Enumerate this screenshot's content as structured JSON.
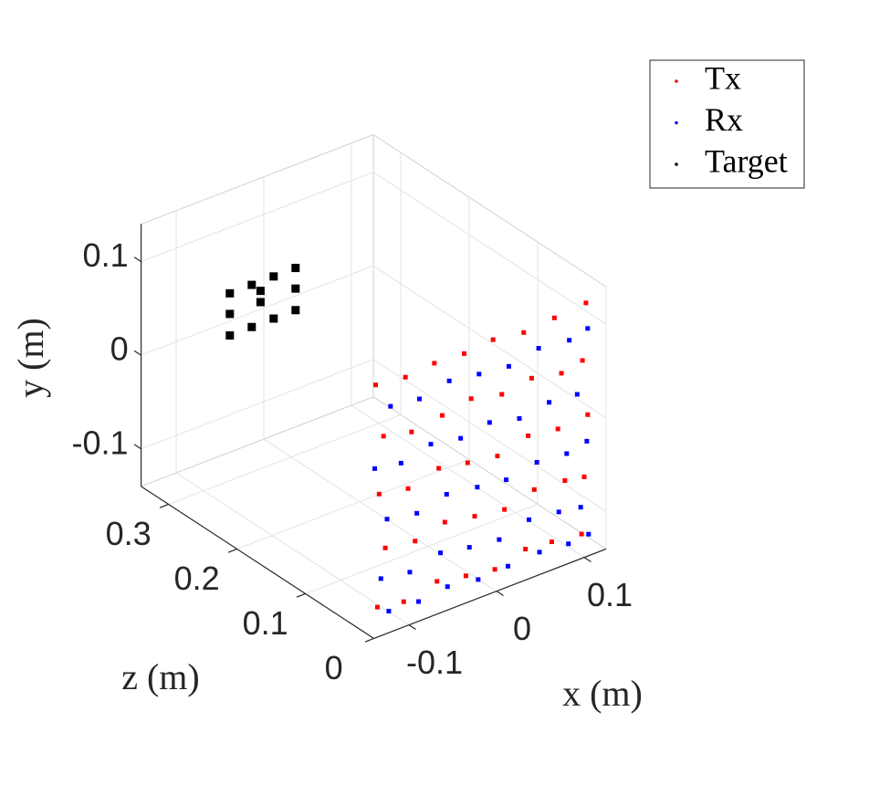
{
  "chart_data": {
    "type": "scatter3d",
    "xlabel": "x (m)",
    "ylabel": "y (m)",
    "zlabel": "z (m)",
    "xlim": [
      -0.14,
      0.125
    ],
    "ylim": [
      -0.14,
      0.14
    ],
    "zlim": [
      0,
      0.34
    ],
    "xticks": [
      -0.1,
      0,
      0.1
    ],
    "yticks": [
      -0.1,
      0,
      0.1
    ],
    "zticks": [
      0,
      0.1,
      0.2,
      0.3
    ],
    "grid": true,
    "series": [
      {
        "name": "Tx",
        "color": "#ff0000",
        "x": [
          -0.138,
          -0.104,
          -0.071,
          -0.037,
          -0.004,
          0.031,
          0.066,
          0.102,
          -0.129,
          -0.097,
          -0.062,
          -0.029,
          0.006,
          0.04,
          0.074,
          0.098,
          -0.134,
          -0.101,
          -0.066,
          -0.033,
          0.001,
          0.036,
          0.07,
          0.104,
          -0.127,
          -0.093,
          -0.059,
          -0.025,
          0.009,
          0.043,
          0.078,
          0.1,
          -0.136,
          -0.106,
          -0.068,
          -0.035,
          -0.002,
          0.033,
          0.063,
          0.097
        ],
        "y": [
          0.13,
          0.126,
          0.129,
          0.127,
          0.13,
          0.125,
          0.128,
          0.131,
          0.072,
          0.065,
          0.07,
          0.076,
          0.068,
          0.073,
          0.066,
          0.071,
          0.012,
          0.006,
          0.015,
          0.009,
          0.004,
          0.013,
          0.008,
          0.011,
          -0.048,
          -0.053,
          -0.045,
          -0.051,
          -0.056,
          -0.047,
          -0.05,
          -0.054,
          -0.108,
          -0.113,
          -0.105,
          -0.111,
          -0.116,
          -0.107,
          -0.11,
          -0.114
        ],
        "z": [
          0,
          0,
          0,
          0,
          0,
          0,
          0,
          0,
          0,
          0,
          0,
          0,
          0,
          0,
          0,
          0,
          0,
          0,
          0,
          0,
          0,
          0,
          0,
          0,
          0,
          0,
          0,
          0,
          0,
          0,
          0,
          0,
          0,
          0,
          0,
          0,
          0,
          0,
          0,
          0
        ]
      },
      {
        "name": "Rx",
        "color": "#0000ff",
        "x": [
          -0.121,
          -0.088,
          -0.054,
          -0.02,
          0.014,
          0.048,
          0.083,
          0.104,
          -0.139,
          -0.109,
          -0.075,
          -0.041,
          -0.008,
          0.026,
          0.06,
          0.092,
          -0.125,
          -0.091,
          -0.057,
          -0.022,
          0.011,
          0.046,
          0.08,
          0.103,
          -0.132,
          -0.099,
          -0.064,
          -0.031,
          0.003,
          0.037,
          0.071,
          0.096,
          -0.123,
          -0.089,
          -0.056,
          -0.021,
          0.013,
          0.049,
          0.082,
          0.105
        ],
        "y": [
          0.101,
          0.097,
          0.104,
          0.099,
          0.095,
          0.102,
          0.098,
          0.103,
          0.041,
          0.036,
          0.044,
          0.038,
          0.043,
          0.035,
          0.04,
          0.037,
          -0.018,
          -0.024,
          -0.016,
          -0.021,
          -0.025,
          -0.019,
          -0.022,
          -0.017,
          -0.079,
          -0.084,
          -0.076,
          -0.082,
          -0.086,
          -0.077,
          -0.081,
          -0.085,
          -0.117,
          -0.119,
          -0.115,
          -0.12,
          -0.118,
          -0.116,
          -0.119,
          -0.117
        ],
        "z": [
          0,
          0,
          0,
          0,
          0,
          0,
          0,
          0,
          0,
          0,
          0,
          0,
          0,
          0,
          0,
          0,
          0,
          0,
          0,
          0,
          0,
          0,
          0,
          0,
          0,
          0,
          0,
          0,
          0,
          0,
          0,
          0,
          0,
          0,
          0,
          0,
          0,
          0,
          0,
          0
        ]
      },
      {
        "name": "Target",
        "color": "#000000",
        "x": [
          -0.07,
          -0.045,
          -0.02,
          0.005,
          -0.07,
          -0.045,
          -0.02,
          0.005,
          -0.07,
          0.005,
          -0.035,
          -0.035
        ],
        "y": [
          0.015,
          0.015,
          0.015,
          0.015,
          0.06,
          0.06,
          0.06,
          0.06,
          0.038,
          0.038,
          0.038,
          0.05
        ],
        "z": [
          0.3,
          0.3,
          0.3,
          0.3,
          0.3,
          0.3,
          0.3,
          0.3,
          0.3,
          0.3,
          0.3,
          0.3
        ]
      }
    ]
  }
}
